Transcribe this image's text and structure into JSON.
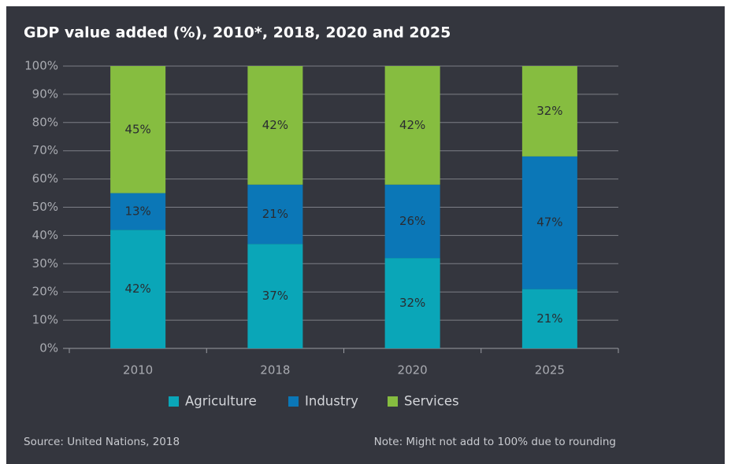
{
  "chart_data": {
    "type": "stacked_bar",
    "title": "GDP value added (%), 2010*, 2018, 2020 and 2025",
    "categories": [
      "2010",
      "2018",
      "2020",
      "2025"
    ],
    "series": [
      {
        "name": "Agriculture",
        "color": "#0aa6b8",
        "values": [
          42,
          37,
          32,
          21
        ],
        "value_labels": [
          "42%",
          "37%",
          "32%",
          "21%"
        ]
      },
      {
        "name": "Industry",
        "color": "#0b77b7",
        "values": [
          13,
          21,
          26,
          47
        ],
        "value_labels": [
          "13%",
          "21%",
          "26%",
          "47%"
        ]
      },
      {
        "name": "Services",
        "color": "#86bd40",
        "values": [
          45,
          42,
          42,
          32
        ],
        "value_labels": [
          "45%",
          "42%",
          "42%",
          "32%"
        ]
      }
    ],
    "ylim": [
      0,
      100
    ],
    "yticks": [
      {
        "value": 0,
        "label": "0%"
      },
      {
        "value": 10,
        "label": "10%"
      },
      {
        "value": 20,
        "label": "20%"
      },
      {
        "value": 30,
        "label": "30%"
      },
      {
        "value": 40,
        "label": "40%"
      },
      {
        "value": 50,
        "label": "50%"
      },
      {
        "value": 60,
        "label": "60%"
      },
      {
        "value": 70,
        "label": "70%"
      },
      {
        "value": 80,
        "label": "80%"
      },
      {
        "value": 90,
        "label": "90%"
      },
      {
        "value": 100,
        "label": "100%"
      }
    ],
    "grid": true,
    "legend": "bottom",
    "source": "Source: United Nations, 2018",
    "note": "Note: Might not add to 100% due to rounding"
  }
}
